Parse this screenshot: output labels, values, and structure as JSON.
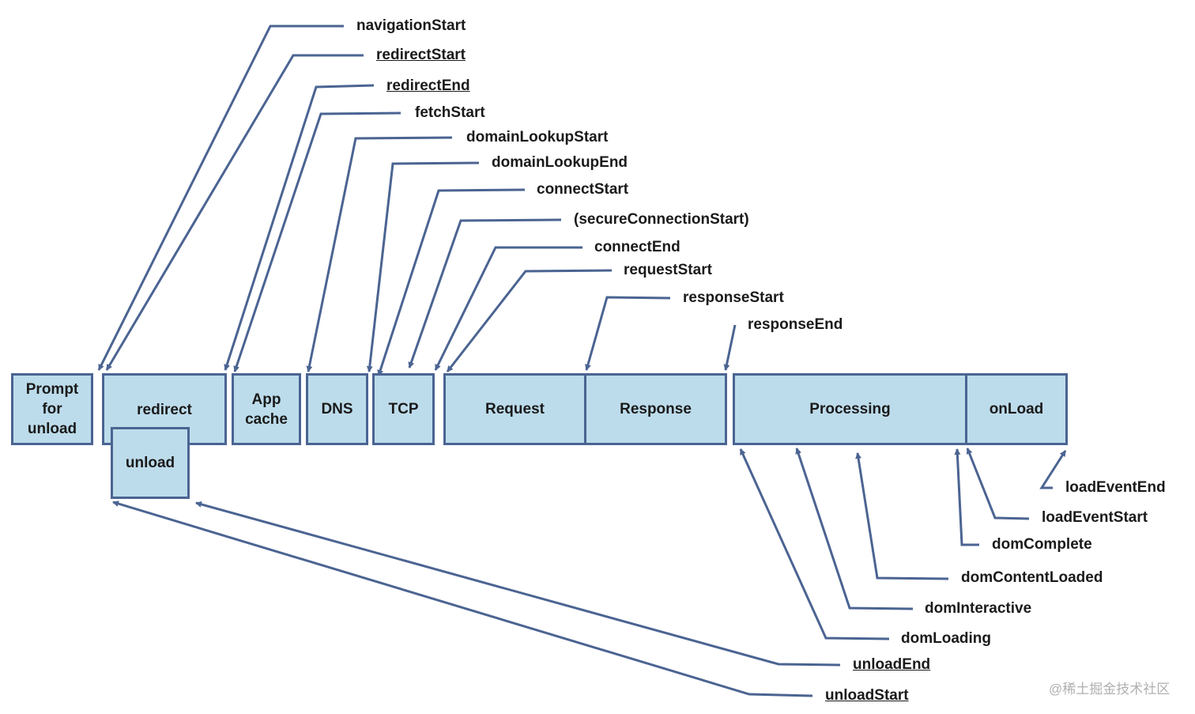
{
  "colors": {
    "box_fill": "#bddceb",
    "box_stroke": "#4b6492",
    "line": "#4b6492"
  },
  "phases": [
    {
      "id": "prompt",
      "label": "Prompt\nfor\nunload"
    },
    {
      "id": "redirect",
      "label": "redirect"
    },
    {
      "id": "unload",
      "label": "unload"
    },
    {
      "id": "appcache",
      "label": "App\ncache"
    },
    {
      "id": "dns",
      "label": "DNS"
    },
    {
      "id": "tcp",
      "label": "TCP"
    },
    {
      "id": "request",
      "label": "Request"
    },
    {
      "id": "response",
      "label": "Response"
    },
    {
      "id": "processing",
      "label": "Processing"
    },
    {
      "id": "onload",
      "label": "onLoad"
    }
  ],
  "events": [
    {
      "label": "navigationStart",
      "underlined": false
    },
    {
      "label": "redirectStart",
      "underlined": true
    },
    {
      "label": "redirectEnd",
      "underlined": true
    },
    {
      "label": "fetchStart",
      "underlined": false
    },
    {
      "label": "domainLookupStart",
      "underlined": false
    },
    {
      "label": "domainLookupEnd",
      "underlined": false
    },
    {
      "label": "connectStart",
      "underlined": false
    },
    {
      "label": "(secureConnectionStart)",
      "underlined": false
    },
    {
      "label": "connectEnd",
      "underlined": false
    },
    {
      "label": "requestStart",
      "underlined": false
    },
    {
      "label": "responseStart",
      "underlined": false
    },
    {
      "label": "responseEnd",
      "underlined": false
    },
    {
      "label": "loadEventEnd",
      "underlined": false
    },
    {
      "label": "loadEventStart",
      "underlined": false
    },
    {
      "label": "domComplete",
      "underlined": false
    },
    {
      "label": "domContentLoaded",
      "underlined": false
    },
    {
      "label": "domInteractive",
      "underlined": false
    },
    {
      "label": "domLoading",
      "underlined": false
    },
    {
      "label": "unloadEnd",
      "underlined": true
    },
    {
      "label": "unloadStart",
      "underlined": true
    }
  ],
  "watermark": "@稀土掘金技术社区"
}
